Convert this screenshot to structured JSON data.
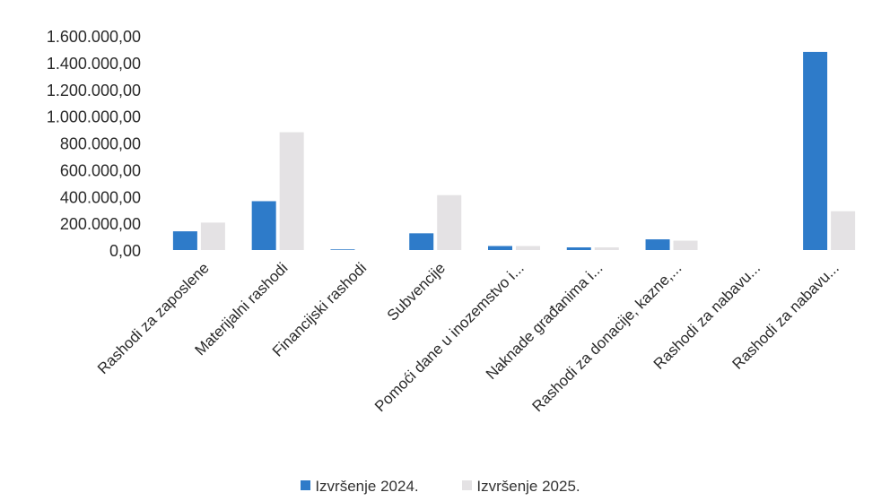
{
  "chart_data": {
    "type": "bar",
    "categories": [
      "Rashodi za zaposlene",
      "Materijalni rashodi",
      "Financijski rashodi",
      "Subvencije",
      "Pomoći dane u inozemstvo i...",
      "Naknade građanima i...",
      "Rashodi za donacije, kazne,...",
      "Rashodi za nabavu...",
      "Rashodi za nabavu..."
    ],
    "series": [
      {
        "name": "Izvršenje 2024.",
        "color": "#2e7bc9",
        "values": [
          140000,
          365000,
          5000,
          125000,
          30000,
          20000,
          80000,
          0,
          1480000
        ]
      },
      {
        "name": "Izvršenje 2025.",
        "color": "#e4e2e4",
        "values": [
          205000,
          880000,
          0,
          410000,
          30000,
          20000,
          70000,
          0,
          290000
        ]
      }
    ],
    "yticks": [
      "0,00",
      "200.000,00",
      "400.000,00",
      "600.000,00",
      "800.000,00",
      "1.000.000,00",
      "1.200.000,00",
      "1.400.000,00",
      "1.600.000,00"
    ],
    "ylim": [
      0,
      1600000
    ],
    "legend_position": "bottom",
    "grid": false
  }
}
